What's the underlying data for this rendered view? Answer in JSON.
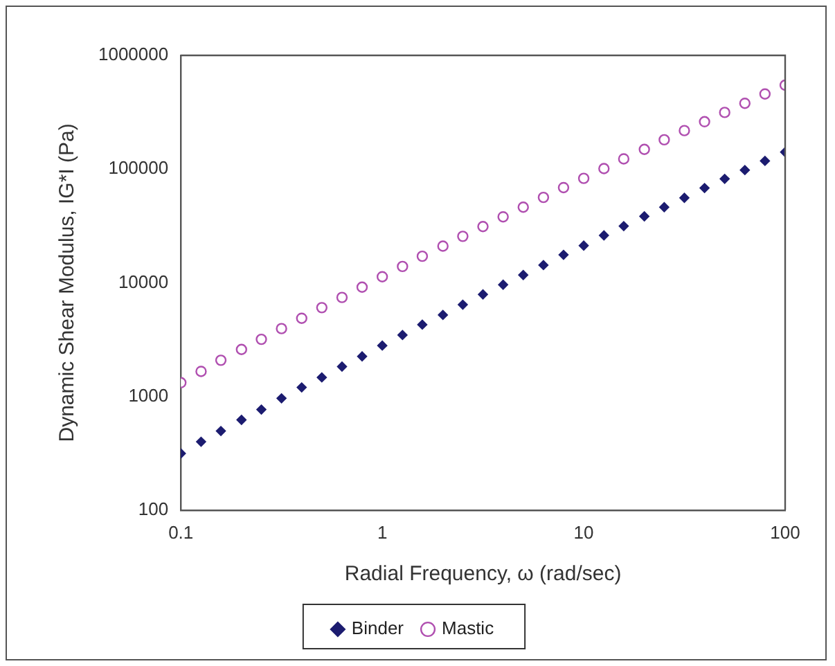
{
  "chart_data": {
    "type": "scatter",
    "xlabel": "Radial Frequency, ω (rad/sec)",
    "ylabel": "Dynamic Shear Modulus, IG*I (Pa)",
    "log": "xy",
    "grid": false,
    "legend": "bottom",
    "x": [
      0.1,
      0.126,
      0.158,
      0.2,
      0.251,
      0.316,
      0.398,
      0.501,
      0.631,
      0.794,
      1,
      1.26,
      1.58,
      2,
      2.51,
      3.16,
      3.98,
      5.01,
      6.31,
      7.94,
      10,
      12.6,
      15.8,
      20,
      25.1,
      31.6,
      39.8,
      50.1,
      63.1,
      79.4,
      100
    ],
    "xlim": [
      0.1,
      100
    ],
    "xticks": [
      0.1,
      1,
      10,
      100
    ],
    "ylim": [
      100,
      1000000
    ],
    "yticks": [
      100,
      1000,
      10000,
      100000,
      1000000
    ],
    "series": [
      {
        "name": "Binder",
        "color": "#1c1c70",
        "marker": "diamond",
        "values": [
          315,
          399,
          496,
          622,
          766,
          962,
          1200,
          1470,
          1830,
          2250,
          2800,
          3470,
          4280,
          5210,
          6410,
          7890,
          9610,
          11700,
          14300,
          17600,
          21200,
          26100,
          31500,
          38400,
          46200,
          55800,
          68100,
          82000,
          98000,
          118000,
          141000
        ]
      },
      {
        "name": "Mastic",
        "color": "#b04fb0",
        "marker": "circle",
        "values": [
          1320,
          1660,
          2080,
          2590,
          3180,
          3950,
          4870,
          6040,
          7430,
          9150,
          11300,
          13900,
          17100,
          21000,
          25600,
          31200,
          38000,
          46200,
          56300,
          68700,
          82800,
          101000,
          123000,
          149000,
          181000,
          218000,
          261000,
          315000,
          379000,
          458000,
          547000
        ]
      }
    ]
  }
}
